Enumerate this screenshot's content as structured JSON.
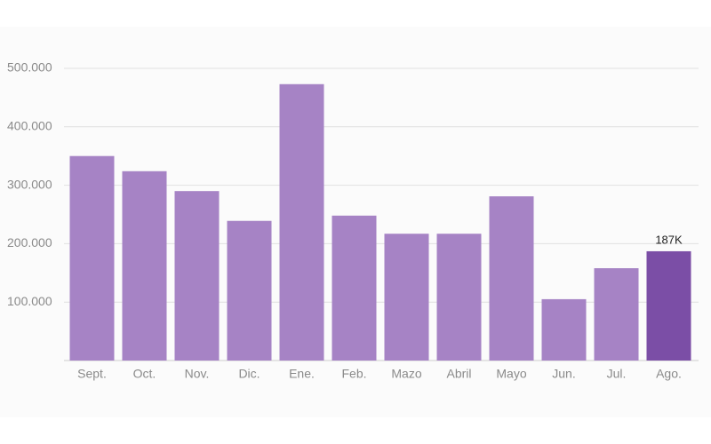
{
  "chart_data": {
    "type": "bar",
    "categories": [
      "Sept.",
      "Oct.",
      "Nov.",
      "Dic.",
      "Ene.",
      "Feb.",
      "Mazo",
      "Abril",
      "Mayo",
      "Jun.",
      "Jul.",
      "Ago."
    ],
    "values": [
      350000,
      324000,
      290000,
      239000,
      473000,
      248000,
      217000,
      217000,
      281000,
      105000,
      158000,
      187000
    ],
    "value_labels": [
      null,
      null,
      null,
      null,
      null,
      null,
      null,
      null,
      null,
      null,
      null,
      "187K"
    ],
    "colors": [
      "#a683c5",
      "#a683c5",
      "#a683c5",
      "#a683c5",
      "#a683c5",
      "#a683c5",
      "#a683c5",
      "#a683c5",
      "#a683c5",
      "#a683c5",
      "#a683c5",
      "#7b4ea6"
    ],
    "ylim": [
      0,
      500000
    ],
    "yticks": [
      {
        "value": 100000,
        "label": "100.000"
      },
      {
        "value": 200000,
        "label": "200.000"
      },
      {
        "value": 300000,
        "label": "300.000"
      },
      {
        "value": 400000,
        "label": "400.000"
      },
      {
        "value": 500000,
        "label": "500.000"
      }
    ],
    "grid": true
  }
}
